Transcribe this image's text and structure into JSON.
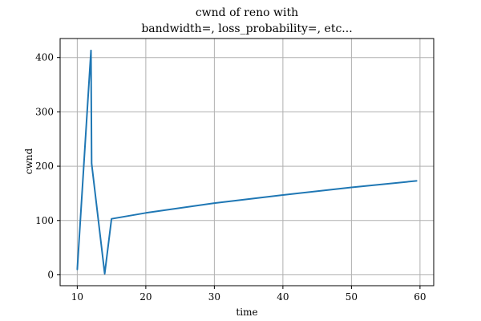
{
  "chart_data": {
    "type": "line",
    "title_lines": [
      "cwnd of reno with",
      "bandwidth=, loss_probability=, etc..."
    ],
    "xlabel": "time",
    "ylabel": "cwnd",
    "xlim": [
      7.5,
      62
    ],
    "ylim": [
      -20,
      435
    ],
    "xticks": [
      10,
      20,
      30,
      40,
      50,
      60
    ],
    "yticks": [
      0,
      100,
      200,
      300,
      400
    ],
    "grid": true,
    "line_color": "#1f77b4",
    "series": [
      {
        "x": [
          10,
          12,
          12.1,
          14,
          15,
          20,
          30,
          40,
          50,
          59.5
        ],
        "y": [
          10,
          413,
          205,
          2,
          103,
          114,
          132,
          147,
          161,
          173
        ]
      }
    ]
  }
}
